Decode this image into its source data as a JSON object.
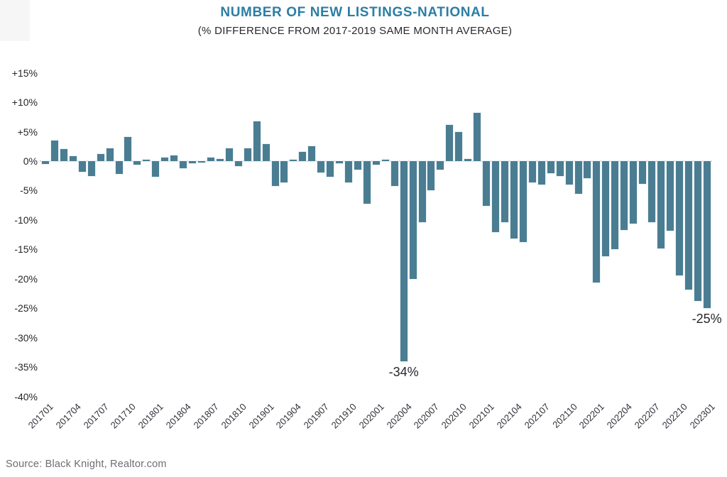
{
  "header": {
    "title": "NUMBER OF NEW LISTINGS-NATIONAL",
    "subtitle": "(% DIFFERENCE FROM 2017-2019 SAME MONTH AVERAGE)"
  },
  "footer": {
    "source": "Source: Black Knight, Realtor.com"
  },
  "colors": {
    "title": "#2b7ea4",
    "bar": "#4a7d92",
    "zero_line": "#d4d4d4",
    "axis_text": "#26262c",
    "source_text": "#6d6d75"
  },
  "chart_data": {
    "type": "bar",
    "title": "NUMBER OF NEW LISTINGS-NATIONAL",
    "subtitle": "(% DIFFERENCE FROM 2017-2019 SAME MONTH AVERAGE)",
    "xlabel": "",
    "ylabel": "",
    "ylim": [
      -40,
      15
    ],
    "grid": "zero-line-only",
    "legend": "none",
    "x": [
      "201701",
      "201702",
      "201703",
      "201704",
      "201705",
      "201706",
      "201707",
      "201708",
      "201709",
      "201710",
      "201711",
      "201712",
      "201801",
      "201802",
      "201803",
      "201804",
      "201805",
      "201806",
      "201807",
      "201808",
      "201809",
      "201810",
      "201811",
      "201812",
      "201901",
      "201902",
      "201903",
      "201904",
      "201905",
      "201906",
      "201907",
      "201908",
      "201909",
      "201910",
      "201911",
      "201912",
      "202001",
      "202002",
      "202003",
      "202004",
      "202005",
      "202006",
      "202007",
      "202008",
      "202009",
      "202010",
      "202011",
      "202012",
      "202101",
      "202102",
      "202103",
      "202104",
      "202105",
      "202106",
      "202107",
      "202108",
      "202109",
      "202110",
      "202111",
      "202112",
      "202201",
      "202202",
      "202203",
      "202204",
      "202205",
      "202206",
      "202207",
      "202208",
      "202209",
      "202210",
      "202211",
      "202212",
      "202301"
    ],
    "values": [
      -0.5,
      3.5,
      2.1,
      0.8,
      -1.8,
      -2.5,
      1.2,
      2.2,
      -2.2,
      4.1,
      -0.6,
      0.3,
      -2.6,
      0.6,
      1.0,
      -1.2,
      -0.4,
      -0.3,
      0.6,
      0.4,
      2.2,
      -0.9,
      2.2,
      6.7,
      2.9,
      -4.2,
      -3.6,
      0.3,
      1.6,
      2.5,
      -1.9,
      -2.6,
      -0.4,
      -3.6,
      -1.4,
      -7.2,
      -0.6,
      0.3,
      -4.2,
      -34,
      -20,
      -10.4,
      -4.9,
      -1.4,
      6.1,
      4.9,
      0.4,
      8.2,
      -7.6,
      -12.1,
      -10.4,
      -13.2,
      -13.7,
      -3.6,
      -4.0,
      -2.1,
      -2.5,
      -4.0,
      -5.5,
      -2.9,
      -20.6,
      -16.2,
      -14.9,
      -11.7,
      -10.6,
      -3.8,
      -10.4,
      -14.8,
      -11.8,
      -19.4,
      -21.8,
      -23.7,
      -25
    ],
    "x_tick_labels": [
      "201701",
      "201704",
      "201707",
      "201710",
      "201801",
      "201804",
      "201807",
      "201810",
      "201901",
      "201904",
      "201907",
      "201910",
      "202001",
      "202004",
      "202007",
      "202010",
      "202101",
      "202104",
      "202107",
      "202110",
      "202201",
      "202204",
      "202207",
      "202210",
      "202301"
    ],
    "y_ticks": [
      {
        "value": 15,
        "label": "+15%"
      },
      {
        "value": 10,
        "label": "+10%"
      },
      {
        "value": 5,
        "label": "+5%"
      },
      {
        "value": 0,
        "label": "0%"
      },
      {
        "value": -5,
        "label": "-5%"
      },
      {
        "value": -10,
        "label": "-10%"
      },
      {
        "value": -15,
        "label": "-15%"
      },
      {
        "value": -20,
        "label": "-20%"
      },
      {
        "value": -25,
        "label": "-25%"
      },
      {
        "value": -30,
        "label": "-30%"
      },
      {
        "value": -35,
        "label": "-35%"
      },
      {
        "value": -40,
        "label": "-40%"
      }
    ],
    "annotations": [
      {
        "x": "202004",
        "label": "-34%"
      },
      {
        "x": "202301",
        "label": "-25%"
      }
    ]
  }
}
